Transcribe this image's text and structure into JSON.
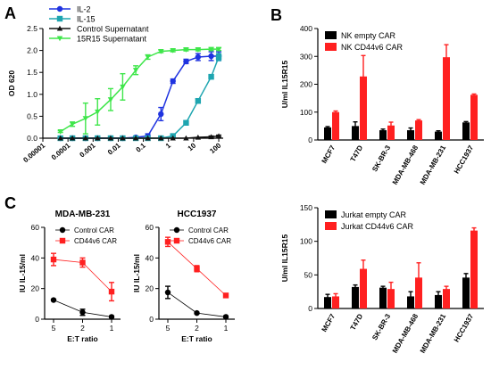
{
  "panels": {
    "a": "A",
    "b": "B",
    "c": "C"
  },
  "chart_data": [
    {
      "id": "A",
      "type": "line",
      "ylabel": "OD 620",
      "xscale": "log",
      "xlim": [
        1e-05,
        150
      ],
      "ylim": [
        0,
        2.5
      ],
      "xticks": [
        "0.00001",
        "0.0001",
        "0.001",
        "0.01",
        "0.1",
        "1",
        "10",
        "100"
      ],
      "yticks": [
        "0.0",
        "0.5",
        "1.0",
        "1.5",
        "2.0",
        "2.5"
      ],
      "legend_position": "top-left",
      "series": [
        {
          "name": "IL-2",
          "color": "#1f33e0",
          "marker": "circle",
          "x": [
            5e-05,
            0.00015,
            0.0005,
            0.0015,
            0.005,
            0.015,
            0.05,
            0.15,
            0.5,
            1.5,
            5,
            15,
            50,
            100
          ],
          "y": [
            0,
            0,
            0,
            0,
            0,
            0,
            0.02,
            0.05,
            0.55,
            1.3,
            1.75,
            1.85,
            1.87,
            1.87
          ],
          "err": [
            0,
            0,
            0,
            0,
            0,
            0,
            0.02,
            0.05,
            0.15,
            0.05,
            0.05,
            0.08,
            0.1,
            0.1
          ]
        },
        {
          "name": "IL-15",
          "color": "#1ea5b0",
          "marker": "square",
          "x": [
            5e-05,
            0.00015,
            0.0005,
            0.0015,
            0.005,
            0.015,
            0.05,
            0.15,
            0.5,
            1.5,
            5,
            15,
            50,
            100
          ],
          "y": [
            0,
            0,
            0,
            0,
            0,
            0,
            0,
            0,
            0,
            0.05,
            0.35,
            0.85,
            1.4,
            1.85
          ],
          "err": [
            0,
            0,
            0,
            0,
            0,
            0,
            0,
            0,
            0,
            0.03,
            0.05,
            0.05,
            0.05,
            0.08
          ]
        },
        {
          "name": "Control Supernatant",
          "color": "#111111",
          "marker": "triangle",
          "x": [
            5e-05,
            0.00015,
            0.0005,
            0.0015,
            0.005,
            0.015,
            0.05,
            0.15,
            0.5,
            1.5,
            5,
            15,
            50,
            100
          ],
          "y": [
            0,
            0,
            0,
            0,
            0,
            0,
            0,
            0,
            0,
            0,
            0,
            0.02,
            0.03,
            0.05
          ],
          "err": [
            0,
            0,
            0,
            0,
            0,
            0,
            0,
            0,
            0,
            0,
            0,
            0,
            0.02,
            0.02
          ]
        },
        {
          "name": "15R15 Supernatant",
          "color": "#3ee64a",
          "marker": "triangle-down",
          "x": [
            5e-05,
            0.00015,
            0.0005,
            0.0015,
            0.005,
            0.015,
            0.05,
            0.15,
            0.5,
            1.5,
            5,
            15,
            50,
            100
          ],
          "y": [
            0.15,
            0.32,
            0.45,
            0.6,
            0.88,
            1.17,
            1.55,
            1.85,
            1.98,
            2.0,
            2.02,
            2.02,
            2.03,
            2.03
          ],
          "err": [
            0.02,
            0.05,
            0.35,
            0.3,
            0.25,
            0.3,
            0.1,
            0.05,
            0.03,
            0.03,
            0.03,
            0.03,
            0.03,
            0.03
          ]
        }
      ]
    },
    {
      "id": "B-top",
      "type": "bar",
      "ylabel": "U/ml IL15R15",
      "ylim": [
        0,
        400
      ],
      "yticks": [
        "0",
        "100",
        "200",
        "300",
        "400"
      ],
      "categories": [
        "MCF7",
        "T47D",
        "SK-BR-3",
        "MDA-MB-468",
        "MDA-MB-231",
        "HCC1937"
      ],
      "legend_position": "top-left",
      "series": [
        {
          "name": "NK empty CAR",
          "color": "#000000",
          "values": [
            45,
            50,
            35,
            35,
            30,
            63
          ],
          "err": [
            3,
            15,
            4,
            8,
            3,
            3
          ]
        },
        {
          "name": "NK CD44v6  CAR",
          "color": "#ff2020",
          "values": [
            100,
            228,
            52,
            70,
            297,
            162
          ],
          "err": [
            4,
            75,
            12,
            3,
            45,
            3
          ]
        }
      ]
    },
    {
      "id": "B-bottom",
      "type": "bar",
      "ylabel": "U/ml IL15R15",
      "ylim": [
        0,
        150
      ],
      "yticks": [
        "0",
        "50",
        "100",
        "150"
      ],
      "categories": [
        "MCF7",
        "T47D",
        "SK-BR-3",
        "MDA-MB-468",
        "MDA-MB-231",
        "HCC1937"
      ],
      "legend_position": "top-left",
      "series": [
        {
          "name": "Jurkat empty CAR",
          "color": "#000000",
          "values": [
            17,
            32,
            31,
            18,
            20,
            46
          ],
          "err": [
            4,
            3,
            2,
            7,
            5,
            6
          ]
        },
        {
          "name": "Jurkat CD44v6  CAR",
          "color": "#ff2020",
          "values": [
            18,
            59,
            29,
            46,
            29,
            116
          ],
          "err": [
            4,
            13,
            10,
            22,
            4,
            4
          ]
        }
      ]
    },
    {
      "id": "C-left",
      "type": "line",
      "title": "MDA-MB-231",
      "ylabel": "IU IL-15/ml",
      "xlabel": "E:T ratio",
      "xticks": [
        "5",
        "2",
        "1"
      ],
      "ylim": [
        0,
        60
      ],
      "yticks": [
        "0",
        "20",
        "40",
        "60"
      ],
      "legend_position": "top-right",
      "series": [
        {
          "name": "Control CAR",
          "color": "#000000",
          "marker": "circle",
          "values": [
            12.5,
            4.5,
            1.5
          ],
          "err": [
            0.5,
            2,
            0.5
          ]
        },
        {
          "name": "CD44v6 CAR",
          "color": "#ff2020",
          "marker": "square",
          "values": [
            39,
            37,
            18
          ],
          "err": [
            4,
            3,
            6
          ]
        }
      ]
    },
    {
      "id": "C-right",
      "type": "line",
      "title": "HCC1937",
      "ylabel": "IU IL-15/ml",
      "xlabel": "E:T ratio",
      "xticks": [
        "5",
        "2",
        "1"
      ],
      "ylim": [
        0,
        60
      ],
      "yticks": [
        "0",
        "20",
        "40",
        "60"
      ],
      "legend_position": "top-right",
      "series": [
        {
          "name": "Control CAR",
          "color": "#000000",
          "marker": "circle",
          "values": [
            17.5,
            4,
            1.5
          ],
          "err": [
            4,
            0.5,
            0.5
          ]
        },
        {
          "name": "CD44v6 CAR",
          "color": "#ff2020",
          "marker": "square",
          "values": [
            50.5,
            33,
            15.5
          ],
          "err": [
            3,
            2,
            1
          ]
        }
      ]
    }
  ]
}
